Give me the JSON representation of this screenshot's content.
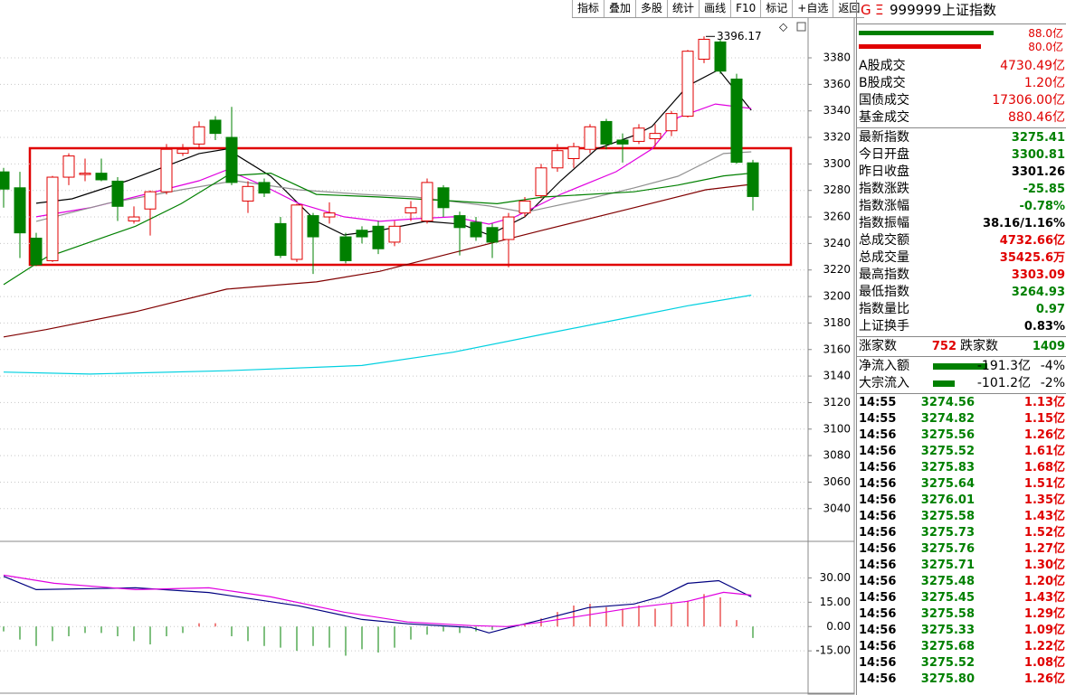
{
  "toolbar": [
    "指标",
    "叠加",
    "多股",
    "统计",
    "画线",
    "F10",
    "标记",
    "+自选",
    "返回"
  ],
  "chart_data": [
    {
      "type": "candlestick",
      "annotation": "3396.17",
      "ylim": [
        3016,
        3410
      ],
      "yticks": [
        3040,
        3060,
        3080,
        3100,
        3120,
        3140,
        3160,
        3180,
        3200,
        3220,
        3240,
        3260,
        3280,
        3300,
        3320,
        3340,
        3360,
        3380
      ],
      "grid": true,
      "up_color": "#e00000",
      "down_color": "#008000",
      "open": [
        3294,
        3282,
        3244,
        3227,
        3290,
        3292,
        3293,
        3287,
        3257,
        3266,
        3279,
        3308,
        3315,
        3333,
        3320,
        3272,
        3286,
        3255,
        3228,
        3261,
        3260,
        3245,
        3250,
        3253,
        3241,
        3263,
        3257,
        3282,
        3261,
        3256,
        3252,
        3243,
        3263,
        3276,
        3297,
        3304,
        3311,
        3332,
        3318,
        3317,
        3319,
        3325,
        3336,
        3379,
        3392,
        3364,
        3300.81
      ],
      "high": [
        3297,
        3294,
        3248,
        3291,
        3308,
        3304,
        3304,
        3290,
        3268,
        3280,
        3315,
        3315,
        3332,
        3336,
        3343,
        3287,
        3289,
        3260,
        3270,
        3263,
        3271,
        3248,
        3253,
        3257,
        3257,
        3272,
        3289,
        3284,
        3264,
        3260,
        3255,
        3263,
        3275,
        3300,
        3315,
        3316,
        3330,
        3334,
        3323,
        3330,
        3330,
        3340,
        3386,
        3396.17,
        3394,
        3368,
        3303.09
      ],
      "low": [
        3267,
        3229,
        3223,
        3226,
        3284,
        3287,
        3287,
        3257,
        3255,
        3246,
        3277,
        3306,
        3311,
        3318,
        3284,
        3263,
        3275,
        3229,
        3226,
        3217,
        3255,
        3225,
        3240,
        3232,
        3238,
        3257,
        3255,
        3260,
        3231,
        3242,
        3229,
        3222,
        3260,
        3274,
        3294,
        3297,
        3308,
        3311,
        3301,
        3315,
        3313,
        3321,
        3335,
        3376,
        3368,
        3300,
        3264.93
      ],
      "close": [
        3281,
        3248,
        3224,
        3290,
        3306,
        3293,
        3288,
        3268,
        3260,
        3279,
        3311,
        3311,
        3328,
        3323,
        3286,
        3283,
        3278,
        3231,
        3269,
        3245,
        3263,
        3227,
        3245,
        3236,
        3253,
        3267,
        3286,
        3267,
        3252,
        3245,
        3241,
        3260,
        3272,
        3297,
        3310,
        3313,
        3328,
        3315,
        3315,
        3327,
        3323,
        3338,
        3385,
        3394,
        3370,
        3301.26,
        3275.41
      ],
      "series": [
        {
          "color": "#000000",
          "x": [
            2,
            4.2,
            7.6,
            12,
            13.7,
            16.4,
            19.2,
            20.9,
            23.1,
            25.9,
            28.1,
            29.8,
            32,
            34.2,
            36.4,
            38.7,
            39.8,
            42,
            43.9,
            45.9
          ],
          "values": [
            3270.3,
            3273.7,
            3287.3,
            3307.8,
            3311.2,
            3290.7,
            3256.7,
            3246.4,
            3249.9,
            3256.7,
            3254.6,
            3246.4,
            3260.1,
            3287.3,
            3311.2,
            3321.4,
            3328.2,
            3358.9,
            3371.1,
            3340.5
          ]
        },
        {
          "color": "#e000e0",
          "x": [
            2,
            5.3,
            8.7,
            12,
            13.7,
            15.9,
            18.1,
            20.9,
            23.1,
            25.3,
            27.6,
            29.8,
            31.4,
            34.2,
            37.6,
            39.8,
            41.4,
            43.7,
            45.9
          ],
          "values": [
            3260.1,
            3266.9,
            3277.1,
            3287.3,
            3295.5,
            3283.9,
            3270.3,
            3260.1,
            3256.7,
            3258.7,
            3260.1,
            3254.6,
            3260.1,
            3277.1,
            3294.1,
            3311.2,
            3335,
            3345.2,
            3341.8
          ]
        },
        {
          "color": "#909090",
          "x": [
            2,
            6.4,
            10.9,
            14.2,
            18.1,
            22,
            25.3,
            29.8,
            32,
            35.9,
            38.7,
            41.4,
            44.2,
            45.9
          ],
          "values": [
            3256.7,
            3270.3,
            3280.5,
            3287.3,
            3280.5,
            3277.1,
            3275,
            3268.3,
            3263.5,
            3273.7,
            3281.9,
            3290.7,
            3307.8,
            3309.1
          ]
        },
        {
          "color": "#008000",
          "x": [
            0,
            2.6,
            8.1,
            10.9,
            13.7,
            16.4,
            19.2,
            23.1,
            27.6,
            30.3,
            33.1,
            38.7,
            41.4,
            44.2,
            45.9
          ],
          "values": [
            3209,
            3229.4,
            3253,
            3270,
            3291,
            3293,
            3277,
            3275,
            3272,
            3270,
            3275,
            3279,
            3284,
            3291,
            3293
          ]
        },
        {
          "color": "#800000",
          "x": [
            0,
            2.6,
            8.1,
            13.7,
            19.2,
            23.1,
            27.6,
            33.1,
            38.7,
            43.1,
            45.9
          ],
          "values": [
            3169.5,
            3175,
            3188.5,
            3205.6,
            3211,
            3219,
            3233,
            3250,
            3267,
            3280.5,
            3284.6
          ]
        },
        {
          "color": "#00d0e0",
          "x": [
            0,
            5.3,
            13.7,
            22,
            27.6,
            33.1,
            38.7,
            42,
            45.9
          ],
          "values": [
            3143,
            3141.5,
            3144,
            3148,
            3158,
            3171.5,
            3185,
            3193,
            3201
          ]
        }
      ]
    },
    {
      "type": "macd",
      "ylim": [
        -40,
        52
      ],
      "yticks": [
        {
          "value": 30,
          "label": "30.00"
        },
        {
          "value": 15,
          "label": "15.00"
        },
        {
          "value": 0,
          "label": "0.00"
        },
        {
          "value": -15,
          "label": "-15.00"
        }
      ],
      "grid": true,
      "up_color": "#e00000",
      "down_color": "#008000",
      "values": [
        -3,
        -8,
        -12,
        -9,
        -6,
        -4,
        -4,
        -6,
        -9,
        -11,
        -6,
        -4,
        2,
        2,
        -6,
        -9,
        -12,
        -13,
        -15,
        -12,
        -13,
        -18,
        -14,
        -16,
        -13,
        -8,
        -5,
        -3,
        -4,
        -3,
        -2,
        -1,
        1,
        5,
        9,
        13,
        14,
        12,
        11,
        13,
        11,
        14,
        16,
        20,
        18,
        4,
        -7
      ],
      "series": [
        {
          "color": "#000080",
          "x": [
            0,
            2,
            8.1,
            12.6,
            18.1,
            22,
            24.8,
            28.7,
            29.8,
            30.9,
            33.1,
            35.9,
            38.7,
            40.3,
            42,
            43.9,
            45.9
          ],
          "values": [
            31,
            22.8,
            23.9,
            21,
            12.8,
            4.4,
            1.7,
            -0.6,
            -3.9,
            -1,
            4.4,
            11.7,
            13.9,
            18.3,
            26.7,
            28.3,
            18.3
          ]
        },
        {
          "color": "#e000e0",
          "x": [
            0,
            3.1,
            8.1,
            12.6,
            16.4,
            20.9,
            24.8,
            28.7,
            30.9,
            33.1,
            35.9,
            38.7,
            42,
            44.2,
            45.9
          ],
          "values": [
            31.7,
            26.7,
            22.8,
            23.9,
            18.3,
            8.9,
            2.8,
            0.6,
            0,
            2.8,
            7.2,
            11.7,
            15.6,
            21.1,
            19.4
          ]
        }
      ]
    }
  ],
  "panel": {
    "header": {
      "mark": "G",
      "menu": "Ξ",
      "code": "999999",
      "name": "上证指数"
    },
    "bars": [
      "88.0亿",
      "80.0亿"
    ],
    "volume": [
      {
        "label": "A股成交",
        "value": "4730.49亿",
        "color": "#e00000"
      },
      {
        "label": "B股成交",
        "value": "1.20亿",
        "color": "#e00000"
      },
      {
        "label": "国债成交",
        "value": "17306.00亿",
        "color": "#e00000"
      },
      {
        "label": "基金成交",
        "value": "880.46亿",
        "color": "#e00000"
      }
    ],
    "stats": [
      {
        "label": "最新指数",
        "value": "3275.41",
        "color": "#008000"
      },
      {
        "label": "今日开盘",
        "value": "3300.81",
        "color": "#008000"
      },
      {
        "label": "昨日收盘",
        "value": "3301.26",
        "color": "#000000"
      },
      {
        "label": "指数涨跌",
        "value": "-25.85",
        "color": "#008000"
      },
      {
        "label": "指数涨幅",
        "value": "-0.78%",
        "color": "#008000"
      },
      {
        "label": "指数振幅",
        "value": "38.16/1.16%",
        "color": "#000000"
      },
      {
        "label": "总成交额",
        "value": "4732.66亿",
        "color": "#e00000"
      },
      {
        "label": "总成交量",
        "value": "35425.6万",
        "color": "#e00000"
      },
      {
        "label": "最高指数",
        "value": "3303.09",
        "color": "#e00000"
      },
      {
        "label": "最低指数",
        "value": "3264.93",
        "color": "#008000"
      },
      {
        "label": "指数量比",
        "value": "0.97",
        "color": "#008000"
      },
      {
        "label": "上证换手",
        "value": "0.83%",
        "color": "#000000"
      }
    ],
    "breadth": {
      "up_label": "涨家数",
      "up": "752",
      "down_label": "跌家数",
      "down": "1409"
    },
    "flows": [
      {
        "label": "净流入额",
        "value": "-191.3亿",
        "pct": "-4%"
      },
      {
        "label": "大宗流入",
        "value": "-101.2亿",
        "pct": "-2%"
      }
    ],
    "ticks": [
      [
        "14:55",
        "3274.56",
        "1.13亿"
      ],
      [
        "14:55",
        "3274.82",
        "1.15亿"
      ],
      [
        "14:56",
        "3275.56",
        "1.26亿"
      ],
      [
        "14:56",
        "3275.52",
        "1.61亿"
      ],
      [
        "14:56",
        "3275.83",
        "1.68亿"
      ],
      [
        "14:56",
        "3275.64",
        "1.51亿"
      ],
      [
        "14:56",
        "3276.01",
        "1.35亿"
      ],
      [
        "14:56",
        "3275.58",
        "1.43亿"
      ],
      [
        "14:56",
        "3275.73",
        "1.52亿"
      ],
      [
        "14:56",
        "3275.76",
        "1.27亿"
      ],
      [
        "14:56",
        "3275.71",
        "1.30亿"
      ],
      [
        "14:56",
        "3275.48",
        "1.20亿"
      ],
      [
        "14:56",
        "3275.45",
        "1.43亿"
      ],
      [
        "14:56",
        "3275.58",
        "1.29亿"
      ],
      [
        "14:56",
        "3275.33",
        "1.09亿"
      ],
      [
        "14:56",
        "3275.68",
        "1.22亿"
      ],
      [
        "14:56",
        "3275.52",
        "1.08亿"
      ],
      [
        "14:56",
        "3275.80",
        "1.26亿"
      ]
    ]
  }
}
